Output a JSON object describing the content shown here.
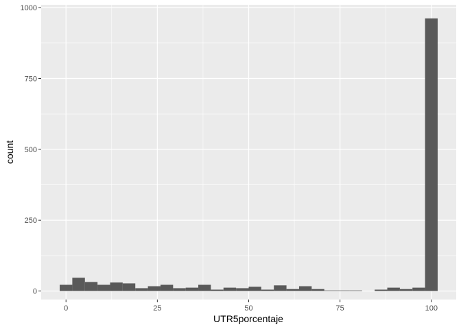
{
  "chart_data": {
    "type": "bar",
    "subtype": "histogram",
    "xlabel": "UTR5porcentaje",
    "ylabel": "count",
    "xlim": [
      -6.8,
      106.8
    ],
    "ylim": [
      -30,
      1010
    ],
    "x_ticks": [
      0,
      25,
      50,
      75,
      100
    ],
    "y_ticks": [
      0,
      250,
      500,
      750,
      1000
    ],
    "x_tick_labels": [
      "0",
      "25",
      "50",
      "75",
      "100"
    ],
    "y_tick_labels": [
      "0",
      "250",
      "500",
      "750",
      "1000"
    ],
    "grid": true,
    "bin_width": 3.45,
    "bins": [
      {
        "x": 0.0,
        "count": 22
      },
      {
        "x": 3.45,
        "count": 47
      },
      {
        "x": 6.9,
        "count": 32
      },
      {
        "x": 10.34,
        "count": 22
      },
      {
        "x": 13.79,
        "count": 30
      },
      {
        "x": 17.24,
        "count": 27
      },
      {
        "x": 20.69,
        "count": 10
      },
      {
        "x": 24.14,
        "count": 17
      },
      {
        "x": 27.59,
        "count": 22
      },
      {
        "x": 31.03,
        "count": 10
      },
      {
        "x": 34.48,
        "count": 12
      },
      {
        "x": 37.93,
        "count": 22
      },
      {
        "x": 41.38,
        "count": 5
      },
      {
        "x": 44.83,
        "count": 12
      },
      {
        "x": 48.28,
        "count": 10
      },
      {
        "x": 51.72,
        "count": 15
      },
      {
        "x": 55.17,
        "count": 5
      },
      {
        "x": 58.62,
        "count": 20
      },
      {
        "x": 62.07,
        "count": 7
      },
      {
        "x": 65.52,
        "count": 17
      },
      {
        "x": 68.97,
        "count": 7
      },
      {
        "x": 72.41,
        "count": 2
      },
      {
        "x": 75.86,
        "count": 2
      },
      {
        "x": 79.31,
        "count": 2
      },
      {
        "x": 82.76,
        "count": 0
      },
      {
        "x": 86.21,
        "count": 5
      },
      {
        "x": 89.66,
        "count": 12
      },
      {
        "x": 93.1,
        "count": 7
      },
      {
        "x": 96.55,
        "count": 12
      },
      {
        "x": 100.0,
        "count": 962
      }
    ],
    "colors": {
      "panel_background": "#ebebeb",
      "grid_major": "#ffffff",
      "bar_fill": "#595959",
      "tick_text": "#4d4d4d",
      "axis_text": "#000000"
    }
  }
}
